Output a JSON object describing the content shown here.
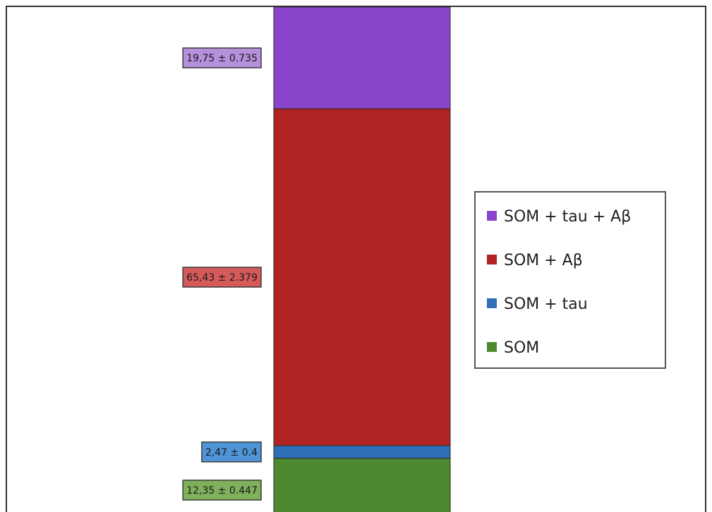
{
  "chart_data": {
    "type": "bar",
    "stacked": true,
    "categories": [
      ""
    ],
    "series": [
      {
        "name": "SOM",
        "values": [
          12.35
        ],
        "error": 0.447,
        "label": "12,35 ± 0.447",
        "color": "#4d8a2f",
        "label_bg": "#7fb05c"
      },
      {
        "name": "SOM + tau",
        "values": [
          2.47
        ],
        "error": 0.4,
        "label": "2,47 ± 0.4",
        "color": "#2f6fb8",
        "label_bg": "#4f94d6"
      },
      {
        "name": "SOM + Aβ",
        "values": [
          65.43
        ],
        "error": 2.379,
        "label": "65,43 ± 2.379",
        "color": "#b02424",
        "label_bg": "#d65a5a"
      },
      {
        "name": "SOM + tau + Aβ",
        "values": [
          19.75
        ],
        "error": 0.735,
        "label": "19,75 ± 0.735",
        "color": "#8a45cc",
        "label_bg": "#b590dc"
      }
    ],
    "legend_order": [
      "SOM + tau + Aβ",
      "SOM + Aβ",
      "SOM + tau",
      "SOM"
    ],
    "legend_position": "right",
    "ylim": [
      0,
      100
    ],
    "grid": false,
    "title": "",
    "xlabel": "",
    "ylabel": ""
  }
}
